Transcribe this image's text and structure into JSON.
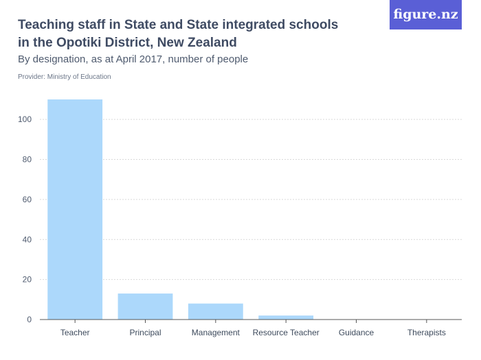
{
  "header": {
    "title": "Teaching staff in State and State integrated schools in the Opotiki District, New Zealand",
    "subtitle": "By designation, as at April 2017, number of people",
    "provider": "Provider: Ministry of Education",
    "brand": "figure.nz"
  },
  "colors": {
    "bar": "#acd8fb",
    "grid": "#d9d9d9",
    "axis": "#555555",
    "brand_bg": "#5a5fd6"
  },
  "chart_data": {
    "type": "bar",
    "title": "Teaching staff in State and State integrated schools in the Opotiki District, New Zealand",
    "subtitle": "By designation, as at April 2017, number of people",
    "categories": [
      "Teacher",
      "Principal",
      "Management",
      "Resource Teacher",
      "Guidance",
      "Therapists"
    ],
    "values": [
      110,
      13,
      8,
      2,
      0,
      0
    ],
    "yticks": [
      0,
      20,
      40,
      60,
      80,
      100
    ],
    "ylim": [
      0,
      110
    ],
    "xlabel": "",
    "ylabel": "",
    "grid": true
  }
}
